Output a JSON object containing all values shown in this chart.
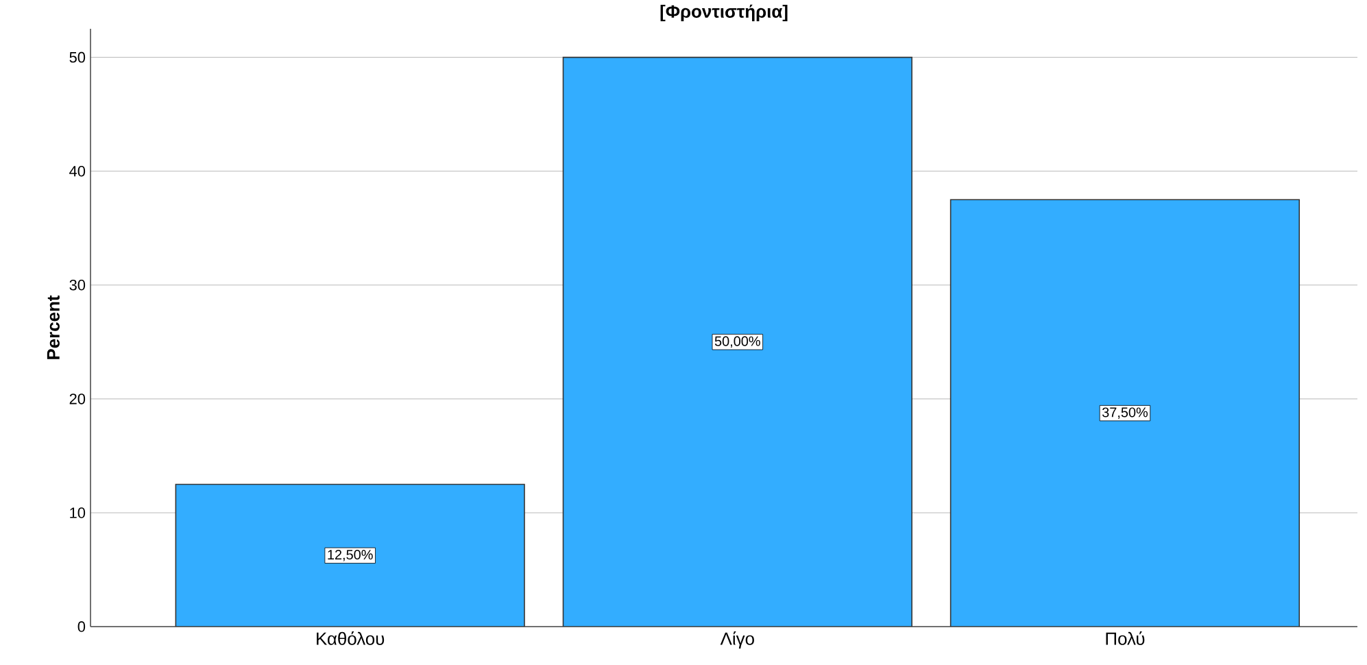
{
  "chart_data": {
    "type": "bar",
    "title": "[Φροντιστήρια]",
    "ylabel": "Percent",
    "categories": [
      "Καθόλου",
      "Λίγο",
      "Πολύ"
    ],
    "values": [
      12.5,
      50,
      37.5
    ],
    "color": "#33adff",
    "value_labels": [
      "12,50%",
      "50,00%",
      "37,50%"
    ],
    "ylim": [
      0,
      52.5
    ],
    "yticks": [
      0,
      10,
      20,
      30,
      40,
      50
    ],
    "grid": "y"
  }
}
